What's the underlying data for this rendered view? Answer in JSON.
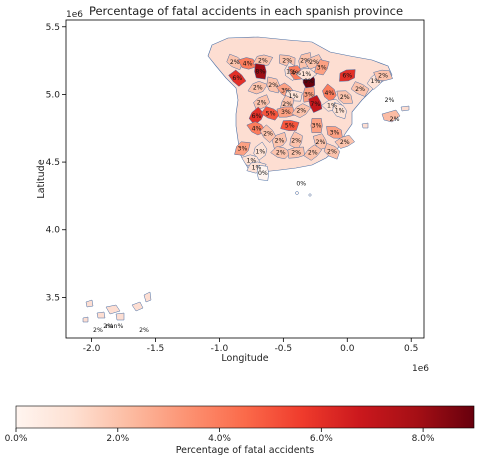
{
  "chart_data": {
    "type": "choropleth",
    "title": "Percentage of fatal accidents in each spanish province",
    "xlabel": "Longitude",
    "ylabel": "Latitude",
    "x_scale_label": "1e6",
    "y_scale_label": "1e6",
    "xlim": [
      -2.2,
      0.6
    ],
    "ylim": [
      3.2,
      5.55
    ],
    "x_ticks": [
      -2.0,
      -1.5,
      -1.0,
      -0.5,
      0.0,
      0.5
    ],
    "x_tick_labels": [
      "-2.0",
      "-1.5",
      "-1.0",
      "-0.5",
      "0.0",
      "0.5"
    ],
    "y_ticks": [
      3.5,
      4.0,
      4.5,
      5.0,
      5.5
    ],
    "y_tick_labels": [
      "3.5",
      "4.0",
      "4.5",
      "5.0",
      "5.5"
    ],
    "colorbar": {
      "label": "Percentage of fatal accidents",
      "range": [
        0,
        9
      ],
      "ticks": [
        0,
        2,
        4,
        6,
        8
      ],
      "tick_labels": [
        "0.0%",
        "2.0%",
        "4.0%",
        "6.0%",
        "8.0%"
      ],
      "colormap": "Reds"
    },
    "regions": [
      {
        "label": "2%",
        "x": -0.88,
        "y": 5.24,
        "value": 2
      },
      {
        "label": "4%",
        "x": -0.78,
        "y": 5.23,
        "value": 4
      },
      {
        "label": "2%",
        "x": -0.66,
        "y": 5.25,
        "value": 2
      },
      {
        "label": "8%",
        "x": -0.68,
        "y": 5.17,
        "value": 8
      },
      {
        "label": "6%",
        "x": -0.86,
        "y": 5.12,
        "value": 6
      },
      {
        "label": "2%",
        "x": -0.47,
        "y": 5.25,
        "value": 2
      },
      {
        "label": "2%",
        "x": -0.33,
        "y": 5.25,
        "value": 2
      },
      {
        "label": "1%",
        "x": -0.44,
        "y": 5.17,
        "value": 1
      },
      {
        "label": "4%",
        "x": -0.4,
        "y": 5.16,
        "value": 4
      },
      {
        "label": "2%",
        "x": -0.26,
        "y": 5.24,
        "value": 2
      },
      {
        "label": "3%",
        "x": -0.2,
        "y": 5.2,
        "value": 3
      },
      {
        "label": "9%",
        "x": -0.3,
        "y": 5.1,
        "value": 9
      },
      {
        "label": "1%",
        "x": -0.32,
        "y": 5.15,
        "value": 1
      },
      {
        "label": "6%",
        "x": 0.0,
        "y": 5.14,
        "value": 6
      },
      {
        "label": "1%",
        "x": 0.22,
        "y": 5.1,
        "value": 1
      },
      {
        "label": "2%",
        "x": 0.1,
        "y": 5.04,
        "value": 2
      },
      {
        "label": "2%",
        "x": 0.28,
        "y": 5.14,
        "value": 2
      },
      {
        "label": "2%",
        "x": -0.7,
        "y": 5.05,
        "value": 2
      },
      {
        "label": "2%",
        "x": -0.58,
        "y": 5.07,
        "value": 2
      },
      {
        "label": "3%",
        "x": -0.48,
        "y": 5.03,
        "value": 3
      },
      {
        "label": "1%",
        "x": -0.42,
        "y": 4.99,
        "value": 1
      },
      {
        "label": "3%",
        "x": -0.3,
        "y": 5.0,
        "value": 3
      },
      {
        "label": "4%",
        "x": -0.14,
        "y": 5.01,
        "value": 4
      },
      {
        "label": "2%",
        "x": -0.02,
        "y": 4.98,
        "value": 2
      },
      {
        "label": "2%",
        "x": -0.67,
        "y": 4.94,
        "value": 2
      },
      {
        "label": "2%",
        "x": -0.47,
        "y": 4.93,
        "value": 2
      },
      {
        "label": "7%",
        "x": -0.25,
        "y": 4.93,
        "value": 7
      },
      {
        "label": "1%",
        "x": -0.12,
        "y": 4.92,
        "value": 1
      },
      {
        "label": "2%",
        "x": 0.33,
        "y": 4.96,
        "value": 2
      },
      {
        "label": "6%",
        "x": -0.71,
        "y": 4.84,
        "value": 6
      },
      {
        "label": "5%",
        "x": -0.6,
        "y": 4.86,
        "value": 5
      },
      {
        "label": "3%",
        "x": -0.48,
        "y": 4.87,
        "value": 3
      },
      {
        "label": "2%",
        "x": -0.36,
        "y": 4.88,
        "value": 2
      },
      {
        "label": "1%",
        "x": -0.06,
        "y": 4.88,
        "value": 1
      },
      {
        "label": "4%",
        "x": -0.71,
        "y": 4.75,
        "value": 4
      },
      {
        "label": "5%",
        "x": -0.45,
        "y": 4.77,
        "value": 5
      },
      {
        "label": "3%",
        "x": -0.24,
        "y": 4.77,
        "value": 3
      },
      {
        "label": "2%",
        "x": -0.62,
        "y": 4.71,
        "value": 2
      },
      {
        "label": "3%",
        "x": -0.1,
        "y": 4.72,
        "value": 3
      },
      {
        "label": "2%",
        "x": -0.53,
        "y": 4.66,
        "value": 2
      },
      {
        "label": "2%",
        "x": -0.4,
        "y": 4.66,
        "value": 2
      },
      {
        "label": "2%",
        "x": -0.21,
        "y": 4.65,
        "value": 2
      },
      {
        "label": "2%",
        "x": -0.02,
        "y": 4.65,
        "value": 2
      },
      {
        "label": "3%",
        "x": -0.82,
        "y": 4.6,
        "value": 3
      },
      {
        "label": "1%",
        "x": -0.68,
        "y": 4.58,
        "value": 1
      },
      {
        "label": "2%",
        "x": -0.52,
        "y": 4.57,
        "value": 2
      },
      {
        "label": "2%",
        "x": -0.4,
        "y": 4.57,
        "value": 2
      },
      {
        "label": "2%",
        "x": -0.27,
        "y": 4.57,
        "value": 2
      },
      {
        "label": "2%",
        "x": -0.12,
        "y": 4.58,
        "value": 2
      },
      {
        "label": "1%",
        "x": -0.75,
        "y": 4.51,
        "value": 1
      },
      {
        "label": "1%",
        "x": -0.71,
        "y": 4.46,
        "value": 1
      },
      {
        "label": "0%",
        "x": -0.66,
        "y": 4.42,
        "value": 0
      },
      {
        "label": "0%",
        "x": -0.36,
        "y": 4.34,
        "value": 0
      },
      {
        "label": "2%",
        "x": 0.37,
        "y": 4.82,
        "value": 2
      },
      {
        "label": "2%",
        "x": -1.95,
        "y": 3.26,
        "value": 2
      },
      {
        "label": "2%",
        "x": -1.87,
        "y": 3.29,
        "value": 2
      },
      {
        "label": "nan%",
        "x": -1.82,
        "y": 3.29,
        "value": null
      },
      {
        "label": "2%",
        "x": -1.59,
        "y": 3.26,
        "value": 2
      }
    ]
  }
}
